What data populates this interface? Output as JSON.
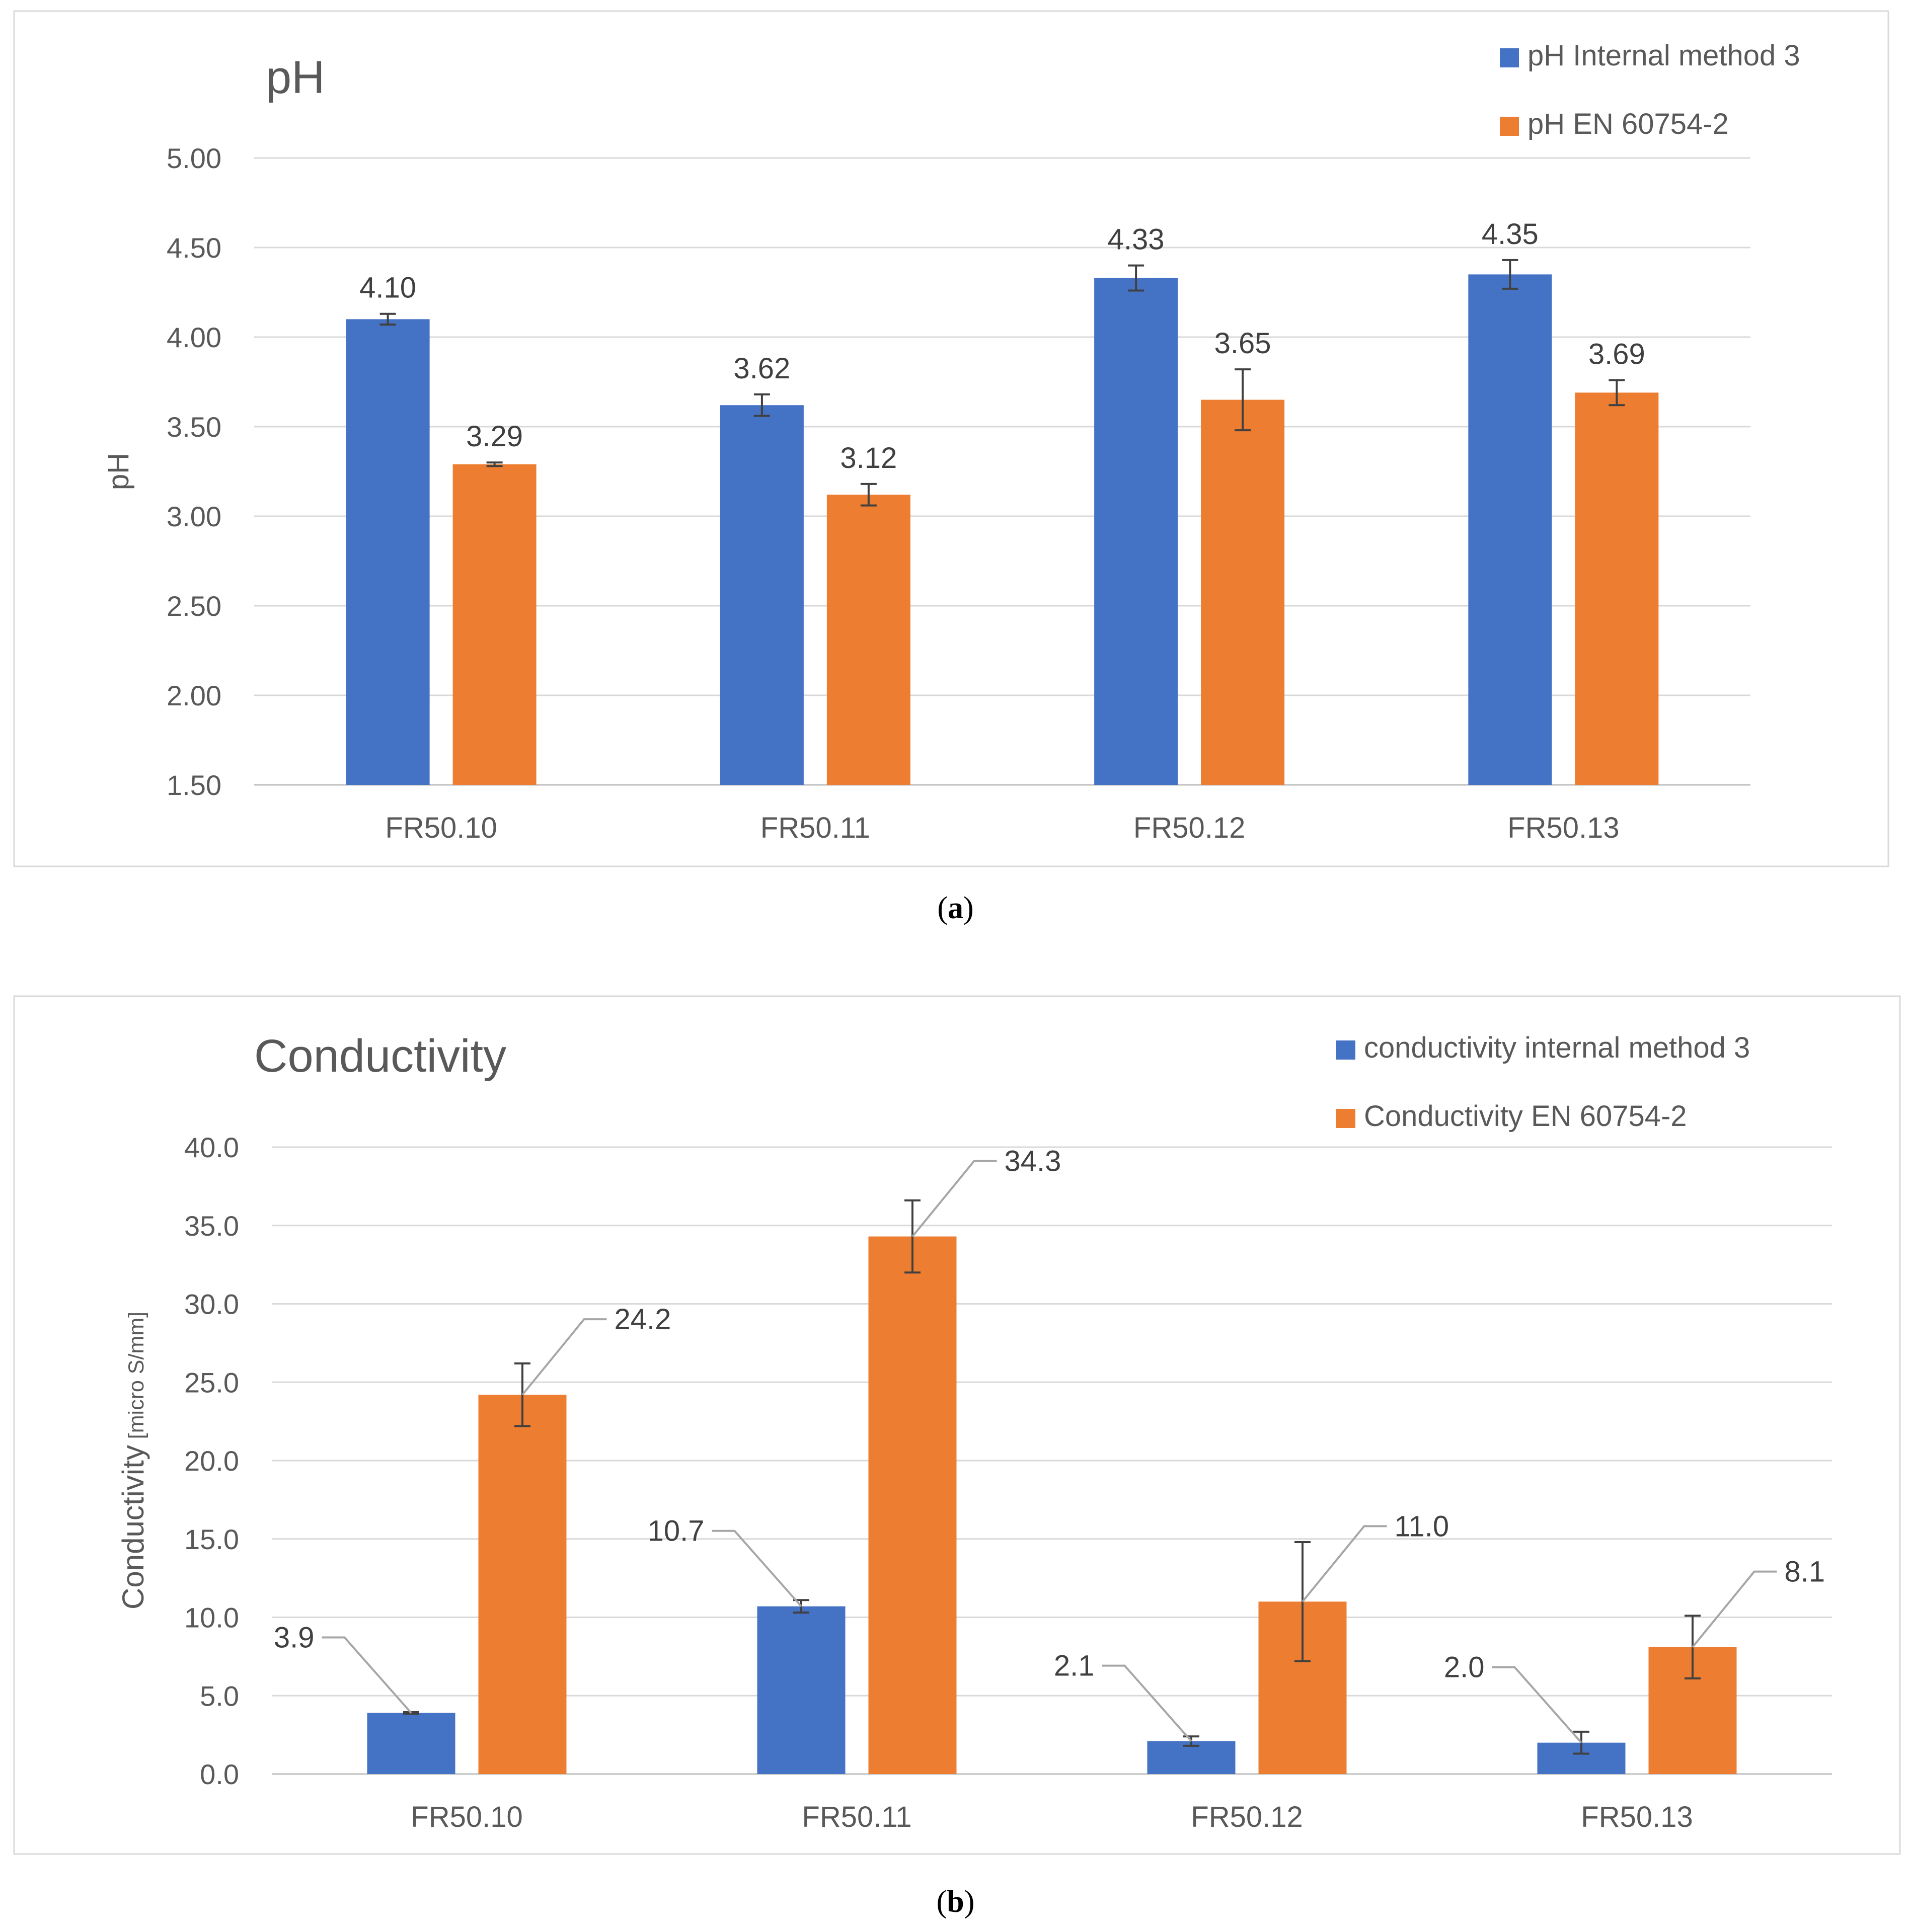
{
  "chart_data": [
    {
      "type": "bar",
      "panel_label": "a",
      "title": "pH",
      "ylabel": "pH",
      "xlabel": "",
      "ylim": [
        1.5,
        5.0
      ],
      "ytick_step": 0.5,
      "ytick_decimals": 2,
      "label_decimals": 2,
      "grid": true,
      "legend_position": "top-right",
      "categories": [
        "FR50.10",
        "FR50.11",
        "FR50.12",
        "FR50.13"
      ],
      "series": [
        {
          "name": "pH Internal method 3",
          "color": "#4472C4",
          "values": [
            4.1,
            3.62,
            4.33,
            4.35
          ],
          "error": [
            0.03,
            0.06,
            0.07,
            0.08
          ]
        },
        {
          "name": "pH EN 60754-2",
          "color": "#ED7D31",
          "values": [
            3.29,
            3.12,
            3.65,
            3.69
          ],
          "error": [
            0.01,
            0.06,
            0.17,
            0.07
          ]
        }
      ]
    },
    {
      "type": "bar",
      "panel_label": "b",
      "title": "Conductivity",
      "ylabel": "Conductivity",
      "ylabel_unit": "[micro S/mm]",
      "xlabel": "",
      "ylim": [
        0,
        40
      ],
      "ytick_step": 5,
      "ytick_decimals": 1,
      "label_decimals": 1,
      "grid": true,
      "legend_position": "top-right",
      "categories": [
        "FR50.10",
        "FR50.11",
        "FR50.12",
        "FR50.13"
      ],
      "series": [
        {
          "name": "conductivity internal method 3",
          "color": "#4472C4",
          "values": [
            3.9,
            10.7,
            2.1,
            2.0
          ],
          "error": [
            0.05,
            0.4,
            0.3,
            0.7
          ]
        },
        {
          "name": "Conductivity EN 60754-2",
          "color": "#ED7D31",
          "values": [
            24.2,
            34.3,
            11.0,
            8.1
          ],
          "error": [
            2.0,
            2.3,
            3.8,
            2.0
          ]
        }
      ]
    }
  ]
}
